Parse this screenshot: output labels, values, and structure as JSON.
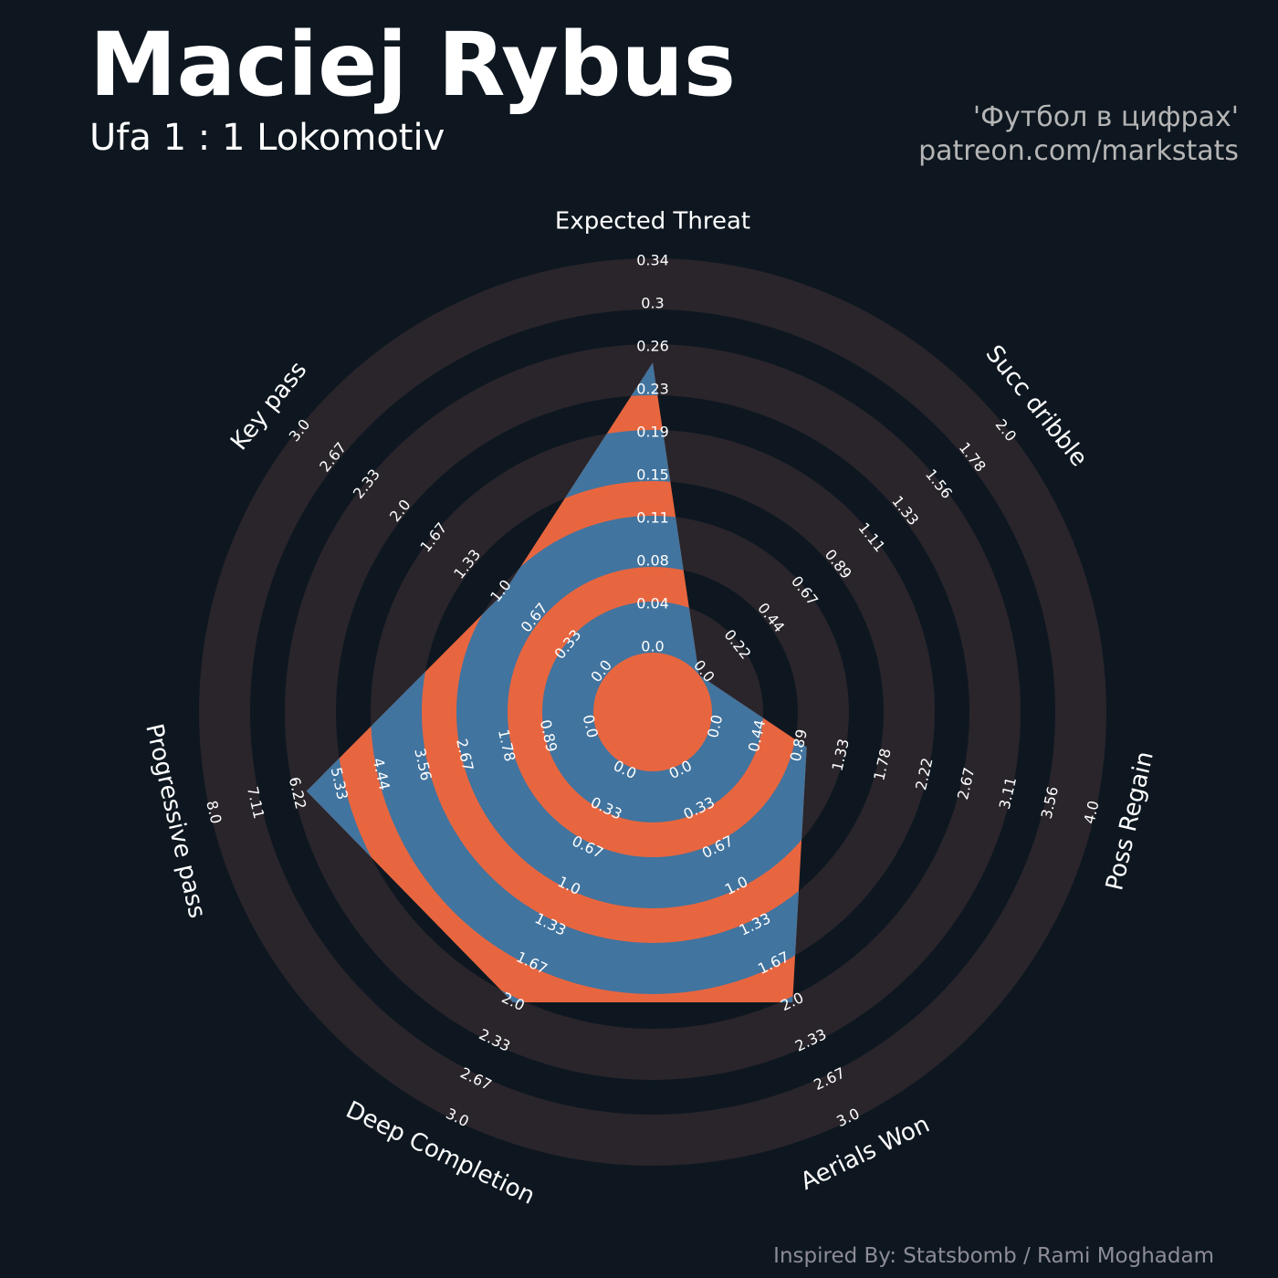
{
  "header": {
    "title": "Maciej Rybus",
    "subtitle": "Ufa 1 : 1 Lokomotiv",
    "credit_line1": "'Футбол в цифрах'",
    "credit_line2": "patreon.com/markstats"
  },
  "footer": {
    "inspired_by": "Inspired By: Statsbomb / Rami Moghadam"
  },
  "colors": {
    "background": "#0e1720",
    "ring_gray": "#29252b",
    "orange": "#e8663f",
    "blue": "#41749f",
    "text": "#ffffff",
    "credit": "#b5b5b5",
    "footer": "#8d8c94"
  },
  "chart_data": {
    "type": "radar",
    "title": "Maciej Rybus",
    "subtitle": "Ufa 1 : 1 Lokomotiv",
    "params": [
      "Expected Threat",
      "Succ dribble",
      "Poss Regain",
      "Aerials Won",
      "Deep Completion",
      "Progressive pass",
      "Key pass"
    ],
    "ranges": [
      [
        0,
        0.34
      ],
      [
        0,
        2.0
      ],
      [
        0,
        4.0
      ],
      [
        0,
        3.0
      ],
      [
        0,
        3.0
      ],
      [
        0,
        8.0
      ],
      [
        0,
        3.0
      ]
    ],
    "values": [
      0.25,
      0.0,
      1.0,
      2.0,
      2.0,
      6.0,
      1.0
    ],
    "tick_labels": [
      [
        "0.0",
        "0.04",
        "0.08",
        "0.11",
        "0.15",
        "0.19",
        "0.23",
        "0.26",
        "0.3",
        "0.34"
      ],
      [
        "0.0",
        "0.22",
        "0.44",
        "0.67",
        "0.89",
        "1.11",
        "1.33",
        "1.56",
        "1.78",
        "2.0"
      ],
      [
        "0.0",
        "0.44",
        "0.89",
        "1.33",
        "1.78",
        "2.22",
        "2.67",
        "3.11",
        "3.56",
        "4.0"
      ],
      [
        "0.0",
        "0.33",
        "0.67",
        "1.0",
        "1.33",
        "1.67",
        "2.0",
        "2.33",
        "2.67",
        "3.0"
      ],
      [
        "0.0",
        "0.33",
        "0.67",
        "1.0",
        "1.33",
        "1.67",
        "2.0",
        "2.33",
        "2.67",
        "3.0"
      ],
      [
        "0.0",
        "0.89",
        "1.78",
        "2.67",
        "3.56",
        "4.44",
        "5.33",
        "6.22",
        "7.11",
        "8.0"
      ],
      [
        "0.0",
        "0.33",
        "0.67",
        "1.0",
        "1.33",
        "1.67",
        "2.0",
        "2.33",
        "2.67",
        "3.0"
      ]
    ]
  }
}
